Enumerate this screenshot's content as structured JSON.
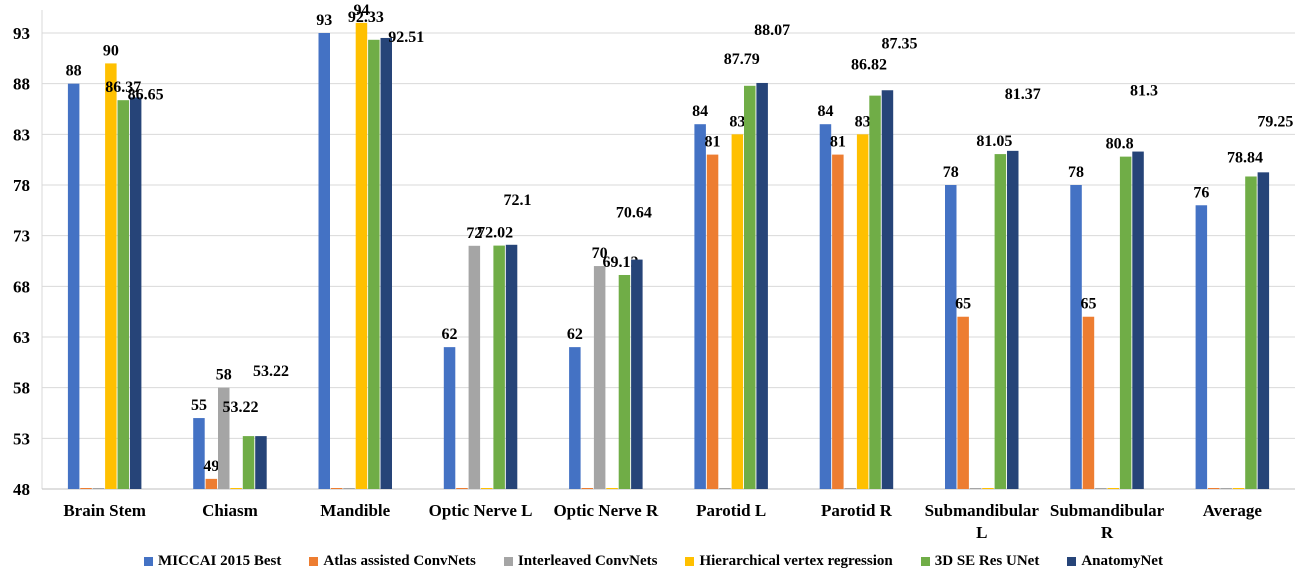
{
  "chart_data": {
    "type": "bar",
    "categories": [
      "Brain Stem",
      "Chiasm",
      "Mandible",
      "Optic Nerve L",
      "Optic Nerve R",
      "Parotid L",
      "Parotid R",
      "Submandibular L",
      "Submandibular R",
      "Average"
    ],
    "category_lines": [
      [
        "Brain Stem"
      ],
      [
        "Chiasm"
      ],
      [
        "Mandible"
      ],
      [
        "Optic Nerve L"
      ],
      [
        "Optic Nerve R"
      ],
      [
        "Parotid L"
      ],
      [
        "Parotid R"
      ],
      [
        "Submandibular",
        "L"
      ],
      [
        "Submandibular",
        "R"
      ],
      [
        "Average"
      ]
    ],
    "series": [
      {
        "name": "MICCAI 2015 Best",
        "color": "#4472C4",
        "values": [
          88,
          55,
          93,
          62,
          62,
          84,
          84,
          78,
          78,
          76
        ]
      },
      {
        "name": "Atlas assisted ConvNets",
        "color": "#ED7D31",
        "values": [
          null,
          49,
          null,
          null,
          null,
          81,
          81,
          65,
          65,
          null
        ]
      },
      {
        "name": "Interleaved ConvNets",
        "color": "#A5A5A5",
        "values": [
          null,
          58,
          null,
          72,
          70,
          null,
          null,
          null,
          null,
          null
        ]
      },
      {
        "name": "Hierarchical vertex regression",
        "color": "#FFC000",
        "values": [
          90,
          null,
          94,
          null,
          null,
          83,
          83,
          null,
          null,
          null
        ]
      },
      {
        "name": "3D SE Res UNet",
        "color": "#70AD47",
        "values": [
          86.37,
          53.22,
          92.33,
          72.02,
          69.12,
          87.79,
          86.82,
          81.05,
          80.8,
          78.84
        ]
      },
      {
        "name": "AnatomyNet",
        "color": "#264478",
        "values": [
          86.65,
          53.22,
          92.51,
          72.1,
          70.64,
          88.07,
          87.35,
          81.37,
          81.3,
          79.25
        ]
      }
    ],
    "yticks": [
      "48",
      "53",
      "58",
      "63",
      "68",
      "73",
      "78",
      "83",
      "88",
      "93"
    ],
    "ylim": [
      48,
      95
    ],
    "grid": true,
    "legend_position": "bottom",
    "title": "",
    "xlabel": "",
    "ylabel": ""
  }
}
